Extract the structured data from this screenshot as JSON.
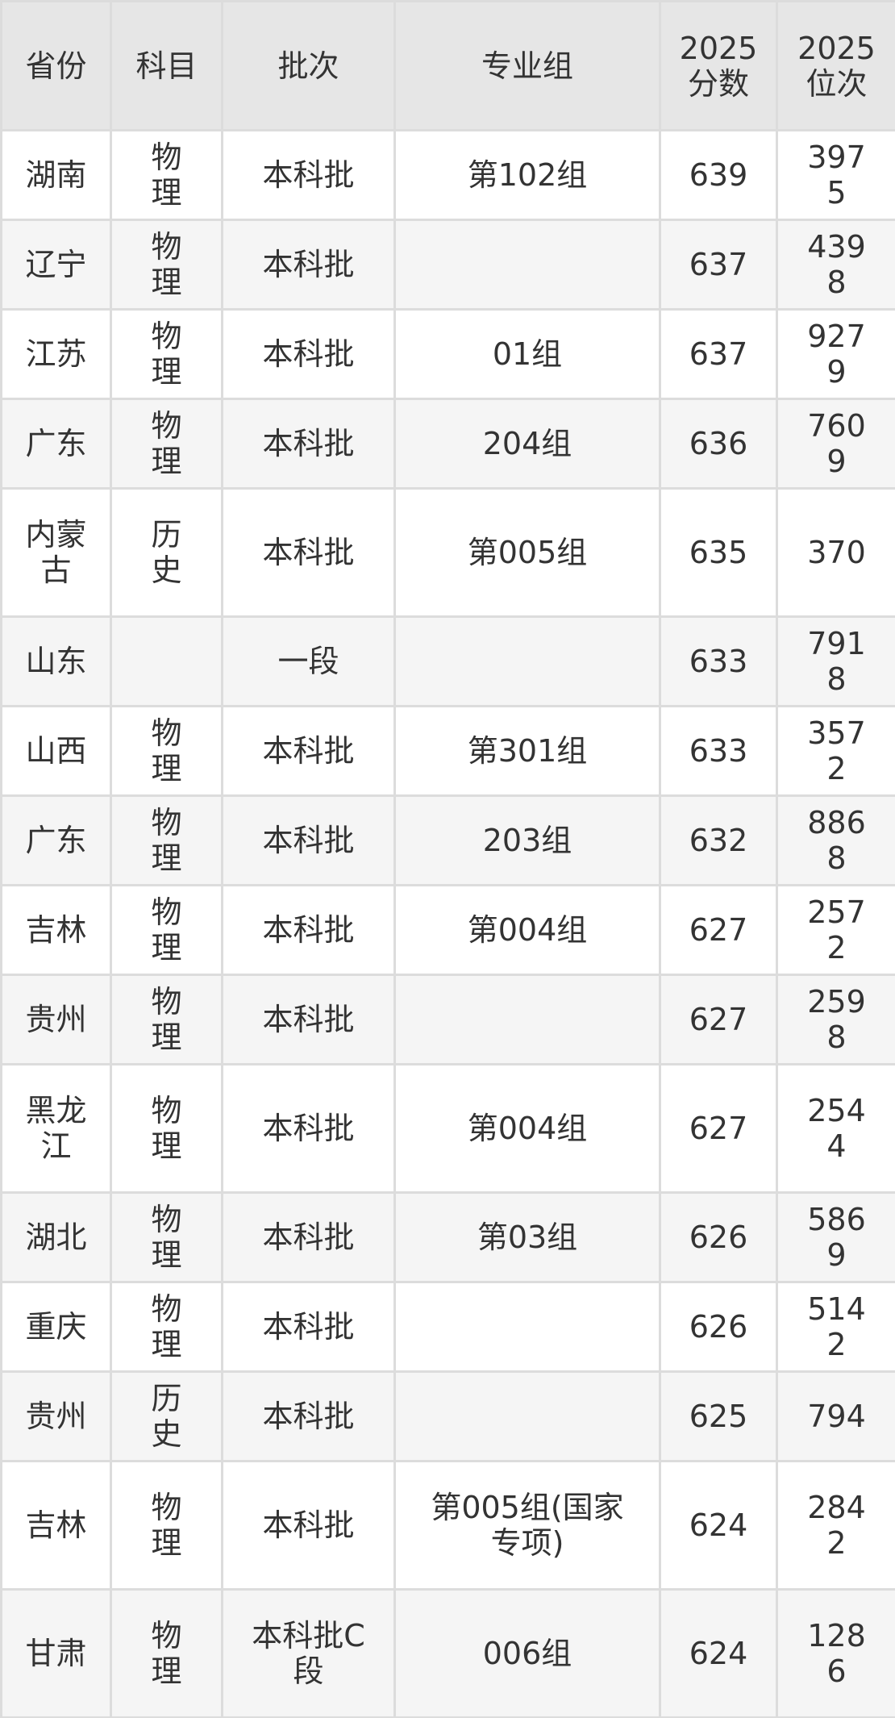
{
  "table": {
    "header": [
      "省份",
      "科目",
      "批次",
      "专业组",
      "2025分数",
      "2025位次"
    ],
    "rows": [
      [
        "湖南",
        "物理",
        "本科批",
        "第102组",
        639,
        3975
      ],
      [
        "辽宁",
        "物理",
        "本科批",
        null,
        637,
        4398
      ],
      [
        "江苏",
        "物理",
        "本科批",
        "01组",
        637,
        9279
      ],
      [
        "广东",
        "物理",
        "本科批",
        "204组",
        636,
        7609
      ],
      [
        "内蒙古",
        "历史",
        "本科批",
        "第005组",
        635,
        370
      ],
      [
        "山东",
        null,
        "一段",
        null,
        633,
        7918
      ],
      [
        "山西",
        "物理",
        "本科批",
        "第301组",
        633,
        3572
      ],
      [
        "广东",
        "物理",
        "本科批",
        "203组",
        632,
        8868
      ],
      [
        "吉林",
        "物理",
        "本科批",
        "第004组",
        627,
        2572
      ],
      [
        "贵州",
        "物理",
        "本科批",
        null,
        627,
        2598
      ],
      [
        "黑龙江",
        "物理",
        "本科批",
        "第004组",
        627,
        2544
      ],
      [
        "湖北",
        "物理",
        "本科批",
        "第03组",
        626,
        5869
      ],
      [
        "重庆",
        "物理",
        "本科批",
        null,
        626,
        5142
      ],
      [
        "贵州",
        "历史",
        "本科批",
        null,
        625,
        794
      ],
      [
        "吉林",
        "物理",
        "本科批",
        "第005组(国家专项)",
        624,
        2842
      ],
      [
        "甘肃",
        "物理",
        "本科批C段",
        "006组",
        624,
        1286
      ]
    ]
  }
}
